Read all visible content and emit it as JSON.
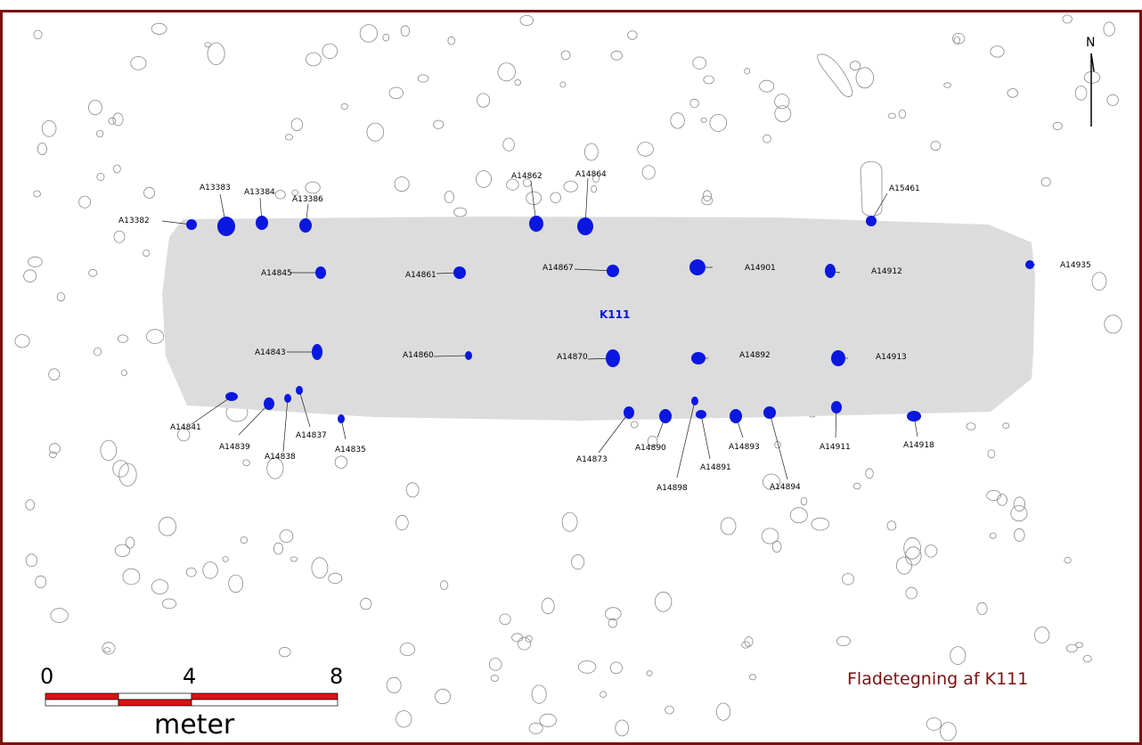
{
  "map": {
    "caption": "Fladetegning af K111",
    "house_label": "K111",
    "north_label": "N",
    "scale": {
      "ticks": [
        "0",
        "4",
        "8"
      ],
      "unit": "meter"
    },
    "colors": {
      "frame": "#7a1010",
      "house_fill": "#dcdcdc",
      "posthole": "#0a17e0",
      "caption": "#7a1010",
      "scale_red": "#e01010"
    }
  },
  "features": [
    {
      "id": "A13382"
    },
    {
      "id": "A13383"
    },
    {
      "id": "A13384"
    },
    {
      "id": "A13386"
    },
    {
      "id": "A14862"
    },
    {
      "id": "A14864"
    },
    {
      "id": "A15461"
    },
    {
      "id": "A14845"
    },
    {
      "id": "A14861"
    },
    {
      "id": "A14867"
    },
    {
      "id": "A14901"
    },
    {
      "id": "A14912"
    },
    {
      "id": "A14935"
    },
    {
      "id": "A14843"
    },
    {
      "id": "A14860"
    },
    {
      "id": "A14870"
    },
    {
      "id": "A14892"
    },
    {
      "id": "A14913"
    },
    {
      "id": "A14841"
    },
    {
      "id": "A14839"
    },
    {
      "id": "A14838"
    },
    {
      "id": "A14837"
    },
    {
      "id": "A14835"
    },
    {
      "id": "A14873"
    },
    {
      "id": "A14890"
    },
    {
      "id": "A14898"
    },
    {
      "id": "A14891"
    },
    {
      "id": "A14893"
    },
    {
      "id": "A14894"
    },
    {
      "id": "A14911"
    },
    {
      "id": "A14918"
    }
  ]
}
